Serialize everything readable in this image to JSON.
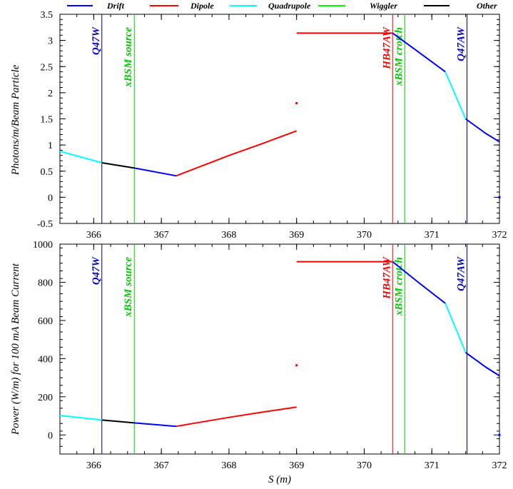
{
  "chart_data": [
    {
      "type": "line",
      "xlabel": "",
      "ylabel": "Photons/m/Beam Particle",
      "xlim": [
        365.5,
        372
      ],
      "ylim": [
        -0.5,
        3.5
      ],
      "xticks": [
        366,
        367,
        368,
        369,
        370,
        371,
        372
      ],
      "yticks": [
        -0.5,
        0,
        0.5,
        1,
        1.5,
        2,
        2.5,
        3,
        3.5
      ],
      "ytick_labels": [
        "-0.5",
        "0",
        "0.5",
        "1",
        "1.5",
        "2",
        "2.5",
        "3",
        "3.5"
      ],
      "segments": [
        {
          "element": "Quadrupole",
          "points": [
            [
              365.5,
              0.88
            ],
            [
              366.12,
              0.66
            ]
          ]
        },
        {
          "element": "Other",
          "points": [
            [
              366.12,
              0.66
            ],
            [
              366.6,
              0.56
            ]
          ]
        },
        {
          "element": "Drift",
          "points": [
            [
              366.6,
              0.56
            ],
            [
              367.22,
              0.41
            ]
          ]
        },
        {
          "element": "Dipole",
          "points": [
            [
              367.22,
              0.41
            ],
            [
              367.5,
              0.55
            ],
            [
              368.0,
              0.8
            ],
            [
              368.5,
              1.03
            ],
            [
              369.0,
              1.27
            ]
          ]
        },
        {
          "element": "Dipole",
          "points": [
            [
              369.0,
              3.14
            ],
            [
              370.42,
              3.14
            ]
          ]
        },
        {
          "element": "Drift",
          "points": [
            [
              370.42,
              3.14
            ],
            [
              370.8,
              2.78
            ],
            [
              371.2,
              2.4
            ]
          ]
        },
        {
          "element": "Quadrupole",
          "points": [
            [
              371.2,
              2.4
            ],
            [
              371.5,
              1.5
            ]
          ]
        },
        {
          "element": "Drift",
          "points": [
            [
              371.5,
              1.5
            ],
            [
              371.8,
              1.22
            ],
            [
              372.0,
              1.06
            ]
          ]
        }
      ],
      "points": [
        {
          "element": "Dipole",
          "x": 369.0,
          "y": 1.8
        },
        {
          "element": "Drift",
          "x": 372.0,
          "y": 0.0
        }
      ]
    },
    {
      "type": "line",
      "xlabel": "S (m)",
      "ylabel": "Power (W/m) for 100 mA Beam Current",
      "xlim": [
        365.5,
        372
      ],
      "ylim": [
        -100,
        1000
      ],
      "xticks": [
        366,
        367,
        368,
        369,
        370,
        371,
        372
      ],
      "yticks": [
        0,
        200,
        400,
        600,
        800,
        1000
      ],
      "ytick_labels": [
        "0",
        "200",
        "400",
        "600",
        "800",
        "1000"
      ],
      "segments": [
        {
          "element": "Quadrupole",
          "points": [
            [
              365.5,
              102
            ],
            [
              366.12,
              78
            ]
          ]
        },
        {
          "element": "Other",
          "points": [
            [
              366.12,
              78
            ],
            [
              366.6,
              63
            ]
          ]
        },
        {
          "element": "Drift",
          "points": [
            [
              366.6,
              63
            ],
            [
              367.22,
              45
            ]
          ]
        },
        {
          "element": "Dipole",
          "points": [
            [
              367.22,
              45
            ],
            [
              367.5,
              62
            ],
            [
              368.0,
              92
            ],
            [
              368.5,
              120
            ],
            [
              369.0,
              146
            ]
          ]
        },
        {
          "element": "Dipole",
          "points": [
            [
              369.0,
              908
            ],
            [
              370.42,
              908
            ]
          ]
        },
        {
          "element": "Drift",
          "points": [
            [
              370.42,
              908
            ],
            [
              370.8,
              800
            ],
            [
              371.2,
              690
            ]
          ]
        },
        {
          "element": "Quadrupole",
          "points": [
            [
              371.2,
              690
            ],
            [
              371.5,
              432
            ]
          ]
        },
        {
          "element": "Drift",
          "points": [
            [
              371.5,
              432
            ],
            [
              371.8,
              355
            ],
            [
              372.0,
              310
            ]
          ]
        }
      ],
      "points": [
        {
          "element": "Dipole",
          "x": 369.0,
          "y": 365
        },
        {
          "element": "Drift",
          "x": 372.0,
          "y": 0
        }
      ]
    }
  ],
  "legend": [
    {
      "name": "Drift",
      "color": "#0000ff"
    },
    {
      "name": "Dipole",
      "color": "#ff0000"
    },
    {
      "name": "Quadrupole",
      "color": "#00ffff"
    },
    {
      "name": "Wiggler",
      "color": "#00ff00"
    },
    {
      "name": "Other",
      "color": "#000000"
    }
  ],
  "markers": [
    {
      "label": "Q47W",
      "x": 366.12,
      "color": "#0000cc",
      "line_color": "#000066"
    },
    {
      "label": "xBSM source",
      "x": 366.6,
      "color": "#00cc00",
      "line_color": "#00cc00"
    },
    {
      "label": "HB47AW",
      "x": 370.42,
      "color": "#ff0000",
      "line_color": "#ff0000"
    },
    {
      "label": "xBSM crotch",
      "x": 370.6,
      "color": "#00cc00",
      "line_color": "#00cc00"
    },
    {
      "label": "Q47AW",
      "x": 371.52,
      "color": "#0000cc",
      "line_color": "#000066"
    }
  ]
}
